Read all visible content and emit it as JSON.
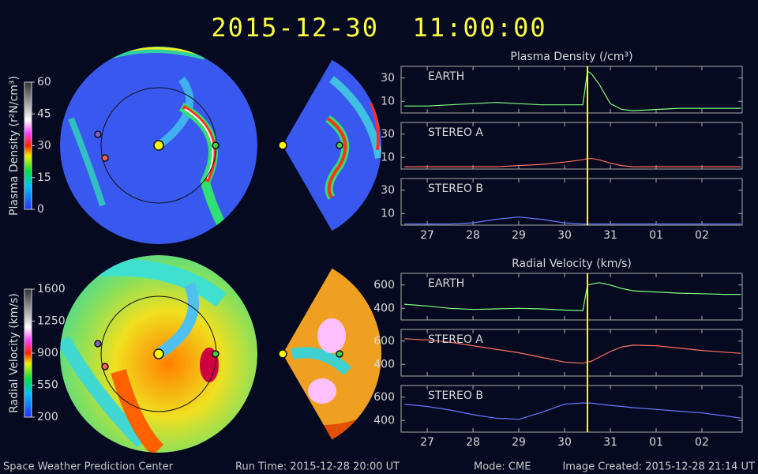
{
  "header": {
    "title": "2015-12-30  11:00:00"
  },
  "footer": {
    "center": "Space Weather Prediction Center",
    "run_time": "Run Time: 2015-12-28 20:00 UT",
    "mode": "Mode: CME",
    "created": "Image Created: 2015-12-28 21:14 UT"
  },
  "chart_data": [
    {
      "type": "colorbar",
      "label": "Plasma Density (r²N/cm³)",
      "ylim": [
        0,
        60
      ],
      "yticks": [
        0,
        15,
        30,
        45,
        60
      ]
    },
    {
      "type": "colorbar",
      "label": "Radial Velocity (km/s)",
      "ylim": [
        200,
        1600
      ],
      "yticks": [
        200,
        550,
        900,
        1250,
        1600
      ]
    },
    {
      "type": "line",
      "title": "Plasma Density (/cm³)",
      "x": [
        26.5,
        27,
        27.5,
        28,
        28.5,
        29,
        29.5,
        30,
        30.4,
        30.5,
        30.6,
        30.75,
        31,
        31.25,
        31.5,
        32,
        32.5,
        33,
        33.5,
        33.85
      ],
      "xlim": [
        26.43,
        33.88
      ],
      "xticks": [
        27,
        28,
        29,
        30,
        31,
        {
          "value": 32,
          "label": "01"
        },
        {
          "value": 33,
          "label": "02"
        }
      ],
      "current_time": 30.5,
      "series": [
        {
          "name": "EARTH",
          "color": "#80ff80",
          "ylim": [
            0,
            40
          ],
          "yticks": [
            10,
            30
          ],
          "values": [
            6,
            6,
            7,
            8,
            9,
            8,
            7,
            7,
            7,
            36,
            33,
            25,
            8,
            3,
            2,
            3,
            4,
            4,
            4,
            4
          ]
        },
        {
          "name": "STEREO A",
          "color": "#ff7060",
          "ylim": [
            0,
            40
          ],
          "yticks": [
            10,
            30
          ],
          "values": [
            2,
            2,
            2,
            2,
            2,
            3,
            4,
            6,
            8,
            9,
            9,
            8,
            5,
            3,
            2,
            2,
            2,
            2,
            2,
            2
          ]
        },
        {
          "name": "STEREO B",
          "color": "#6878ff",
          "ylim": [
            0,
            40
          ],
          "yticks": [
            10,
            30
          ],
          "values": [
            1,
            1,
            1,
            2,
            5,
            7,
            5,
            2,
            1,
            1,
            1,
            1,
            1,
            1,
            1,
            1,
            1,
            1,
            1,
            1
          ]
        }
      ]
    },
    {
      "type": "line",
      "title": "Radial Velocity (km/s)",
      "x": [
        26.5,
        27,
        27.5,
        28,
        28.5,
        29,
        29.5,
        30,
        30.4,
        30.5,
        30.6,
        30.75,
        31,
        31.25,
        31.5,
        32,
        32.5,
        33,
        33.5,
        33.85
      ],
      "xlim": [
        26.43,
        33.88
      ],
      "xticks": [
        27,
        28,
        29,
        30,
        31,
        {
          "value": 32,
          "label": "01"
        },
        {
          "value": 33,
          "label": "02"
        }
      ],
      "current_time": 30.5,
      "series": [
        {
          "name": "EARTH",
          "color": "#80ff80",
          "ylim": [
            300,
            700
          ],
          "yticks": [
            400,
            600
          ],
          "values": [
            435,
            420,
            400,
            390,
            395,
            400,
            395,
            385,
            380,
            600,
            610,
            620,
            600,
            570,
            550,
            540,
            530,
            525,
            520,
            520
          ]
        },
        {
          "name": "STEREO A",
          "color": "#ff7060",
          "ylim": [
            300,
            700
          ],
          "yticks": [
            400,
            600
          ],
          "values": [
            620,
            610,
            590,
            560,
            530,
            500,
            460,
            420,
            410,
            420,
            430,
            460,
            510,
            550,
            565,
            560,
            540,
            520,
            505,
            495
          ]
        },
        {
          "name": "STEREO B",
          "color": "#6878ff",
          "ylim": [
            300,
            700
          ],
          "yticks": [
            400,
            600
          ],
          "values": [
            540,
            520,
            490,
            450,
            420,
            410,
            470,
            540,
            550,
            550,
            548,
            540,
            530,
            520,
            510,
            495,
            480,
            465,
            440,
            420
          ]
        }
      ]
    }
  ]
}
